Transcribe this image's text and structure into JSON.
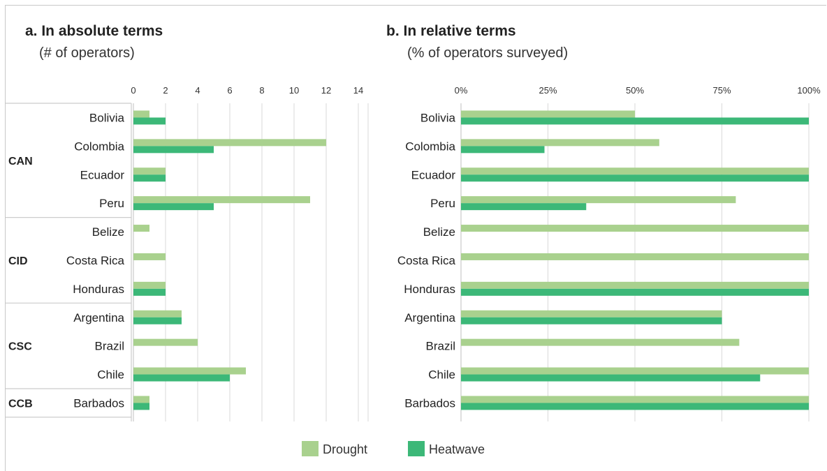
{
  "colors": {
    "drought": "#a9d18e",
    "heatwave": "#3cb878",
    "grid": "#d9d9d9",
    "divider": "#cccccc"
  },
  "legend": {
    "drought": "Drought",
    "heatwave": "Heatwave"
  },
  "groups": [
    {
      "label": "CAN",
      "countries": [
        "Bolivia",
        "Colombia",
        "Ecuador",
        "Peru"
      ]
    },
    {
      "label": "CID",
      "countries": [
        "Belize",
        "Costa Rica",
        "Honduras"
      ]
    },
    {
      "label": "CSC",
      "countries": [
        "Argentina",
        "Brazil",
        "Chile"
      ]
    },
    {
      "label": "CCB",
      "countries": [
        "Barbados"
      ]
    }
  ],
  "chart_data": [
    {
      "type": "bar",
      "orientation": "horizontal",
      "title": "a. In absolute terms",
      "subtitle": "(# of operators)",
      "categories": [
        "Bolivia",
        "Colombia",
        "Ecuador",
        "Peru",
        "Belize",
        "Costa Rica",
        "Honduras",
        "Argentina",
        "Brazil",
        "Chile",
        "Barbados"
      ],
      "series": [
        {
          "name": "Drought",
          "values": [
            1,
            12,
            2,
            11,
            1,
            2,
            2,
            3,
            4,
            7,
            1
          ]
        },
        {
          "name": "Heatwave",
          "values": [
            2,
            5,
            2,
            5,
            0,
            0,
            2,
            3,
            0,
            6,
            1
          ]
        }
      ],
      "xlim": [
        0,
        14
      ],
      "xticks": [
        "0",
        "2",
        "4",
        "6",
        "8",
        "10",
        "12",
        "14"
      ],
      "grid": true,
      "legend_position": "bottom"
    },
    {
      "type": "bar",
      "orientation": "horizontal",
      "title": "b. In relative terms",
      "subtitle": "(% of operators surveyed)",
      "categories": [
        "Bolivia",
        "Colombia",
        "Ecuador",
        "Peru",
        "Belize",
        "Costa Rica",
        "Honduras",
        "Argentina",
        "Brazil",
        "Chile",
        "Barbados"
      ],
      "series": [
        {
          "name": "Drought",
          "values": [
            50,
            57,
            100,
            79,
            100,
            100,
            100,
            75,
            80,
            100,
            100
          ]
        },
        {
          "name": "Heatwave",
          "values": [
            100,
            24,
            100,
            36,
            0,
            0,
            100,
            75,
            0,
            86,
            100
          ]
        }
      ],
      "xlim": [
        0,
        100
      ],
      "xticks": [
        "0%",
        "25%",
        "50%",
        "75%",
        "100%"
      ],
      "grid": true,
      "legend_position": "bottom"
    }
  ]
}
